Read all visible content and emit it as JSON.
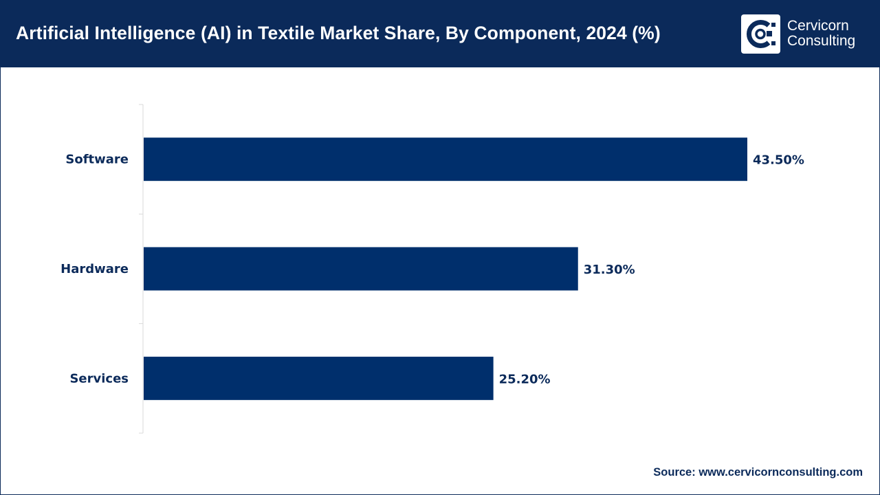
{
  "header": {
    "title": "Artificial Intelligence (AI) in Textile Market Share, By Component, 2024 (%)"
  },
  "logo": {
    "line1": "Cervicorn",
    "line2": "Consulting",
    "icon": "cervicorn-logo-icon"
  },
  "colors": {
    "header_bg": "#0b2a5a",
    "bar": "#002f6c",
    "label": "#0b2a5a"
  },
  "chart_data": {
    "type": "bar",
    "orientation": "horizontal",
    "categories": [
      "Software",
      "Hardware",
      "Services"
    ],
    "values": [
      43.5,
      31.3,
      25.2
    ],
    "value_labels": [
      "43.50%",
      "31.30%",
      "25.20%"
    ],
    "title": "Artificial Intelligence (AI) in Textile Market Share, By Component, 2024 (%)",
    "xlabel": "",
    "ylabel": "",
    "grid": false,
    "legend": "none"
  },
  "footer": {
    "source": "Source: www.cervicornconsulting.com"
  }
}
